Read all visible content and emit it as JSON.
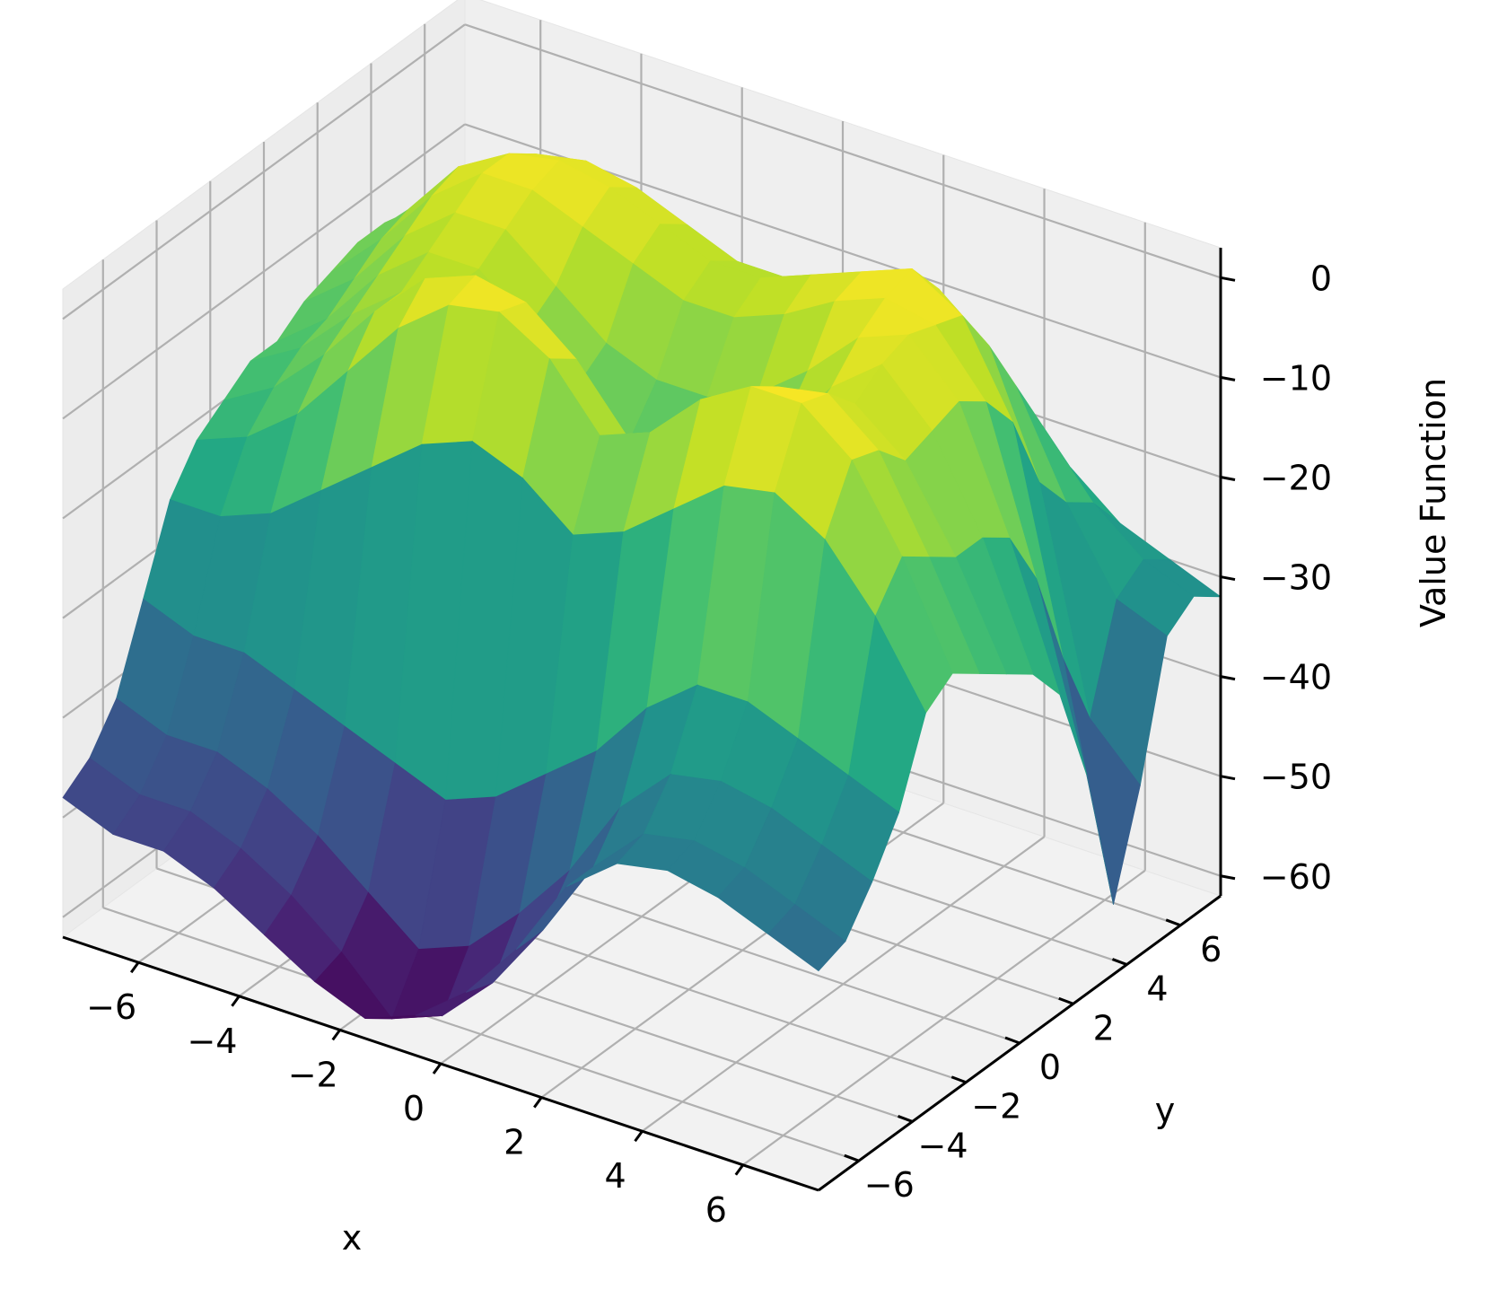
{
  "chart_data": {
    "type": "surface3d",
    "colormap": "viridis",
    "colormap_stops": [
      "#440154",
      "#482475",
      "#414487",
      "#355f8d",
      "#2a788e",
      "#21918c",
      "#22a884",
      "#44bf70",
      "#7ad151",
      "#bddf26",
      "#fde725"
    ],
    "xlabel": "x",
    "ylabel": "y",
    "zlabel": "Value Function",
    "x_ticks": [
      "−6",
      "−4",
      "−2",
      "0",
      "2",
      "4",
      "6"
    ],
    "y_ticks": [
      "−6",
      "−4",
      "−2",
      "0",
      "2",
      "4",
      "6"
    ],
    "z_ticks": [
      "0",
      "−10",
      "−20",
      "−30",
      "−40",
      "−50",
      "−60"
    ],
    "xlim": [
      -7.5,
      7.5
    ],
    "ylim": [
      -7.5,
      7.5
    ],
    "zlim": [
      -62,
      3
    ],
    "grid": true,
    "description_values": {
      "global_min": {
        "x": -1.5,
        "y": -6.0,
        "z": -62
      },
      "local_min_center": {
        "x": 0,
        "y": 0,
        "z": -16
      },
      "max_ring_value": 2
    },
    "surface": {
      "x": [
        -7.5,
        -6.5,
        -5.5,
        -4.5,
        -3.5,
        -2.5,
        -1.5,
        -0.5,
        0.5,
        1.5,
        2.5,
        3.5,
        4.5,
        5.5,
        6.5,
        7.5
      ],
      "y": [
        -7.5,
        -6.5,
        -5.5,
        -4.5,
        -3.5,
        -2.5,
        -1.5,
        -0.5,
        0.5,
        1.5,
        2.5,
        3.5,
        4.5,
        5.5,
        6.5,
        7.5
      ],
      "z": [
        [
          -48,
          -50,
          -50,
          -52,
          -55,
          -58,
          -60,
          -58,
          -54,
          -48,
          -40,
          -36,
          -35,
          -36,
          -38,
          -40
        ],
        [
          -46,
          -48,
          -48,
          -50,
          -53,
          -57,
          -62,
          -60,
          -55,
          -48,
          -40,
          -35,
          -34,
          -35,
          -37,
          -39
        ],
        [
          -42,
          -44,
          -44,
          -46,
          -49,
          -53,
          -57,
          -55,
          -50,
          -44,
          -36,
          -31,
          -30,
          -31,
          -33,
          -35
        ],
        [
          -34,
          -36,
          -36,
          -38,
          -40,
          -42,
          -44,
          -42,
          -38,
          -34,
          -28,
          -24,
          -24,
          -26,
          -28,
          -30
        ],
        [
          -26,
          -26,
          -24,
          -20,
          -16,
          -12,
          -10,
          -12,
          -16,
          -14,
          -10,
          -6,
          -5,
          -8,
          -14,
          -22
        ],
        [
          -22,
          -20,
          -16,
          -10,
          -4,
          0,
          1,
          -2,
          -8,
          -6,
          -1,
          2,
          2,
          -2,
          -10,
          -20
        ],
        [
          -20,
          -17,
          -12,
          -6,
          -1,
          1,
          0,
          -4,
          -10,
          -10,
          -5,
          0,
          1,
          -3,
          -12,
          -22
        ],
        [
          -18,
          -15,
          -10,
          -6,
          -4,
          -6,
          -10,
          -14,
          -16,
          -16,
          -12,
          -6,
          -2,
          -6,
          -14,
          -24
        ],
        [
          -18,
          -14,
          -8,
          -4,
          -4,
          -8,
          -12,
          -16,
          -16,
          -15,
          -10,
          -4,
          0,
          -5,
          -14,
          -26
        ],
        [
          -16,
          -12,
          -6,
          -2,
          -2,
          -6,
          -10,
          -12,
          -12,
          -10,
          -6,
          -1,
          1,
          -4,
          -16,
          -30
        ],
        [
          -15,
          -10,
          -4,
          0,
          0,
          -2,
          -4,
          -6,
          -6,
          -4,
          -1,
          1,
          0,
          -6,
          -22,
          -40
        ],
        [
          -14,
          -9,
          -3,
          0,
          1,
          0,
          -2,
          -4,
          -4,
          -2,
          0,
          2,
          -1,
          -10,
          -32,
          -55
        ],
        [
          -14,
          -10,
          -5,
          -2,
          -1,
          -2,
          -4,
          -6,
          -6,
          -5,
          -3,
          -2,
          -6,
          -18,
          -40,
          -45
        ],
        [
          -16,
          -13,
          -9,
          -6,
          -5,
          -6,
          -8,
          -10,
          -10,
          -9,
          -8,
          -8,
          -12,
          -22,
          -30,
          -32
        ],
        [
          -20,
          -18,
          -15,
          -12,
          -11,
          -12,
          -14,
          -15,
          -15,
          -15,
          -14,
          -15,
          -18,
          -24,
          -28,
          -30
        ],
        [
          -24,
          -22,
          -20,
          -18,
          -17,
          -18,
          -20,
          -21,
          -21,
          -21,
          -21,
          -22,
          -24,
          -28,
          -30,
          -32
        ]
      ]
    }
  }
}
